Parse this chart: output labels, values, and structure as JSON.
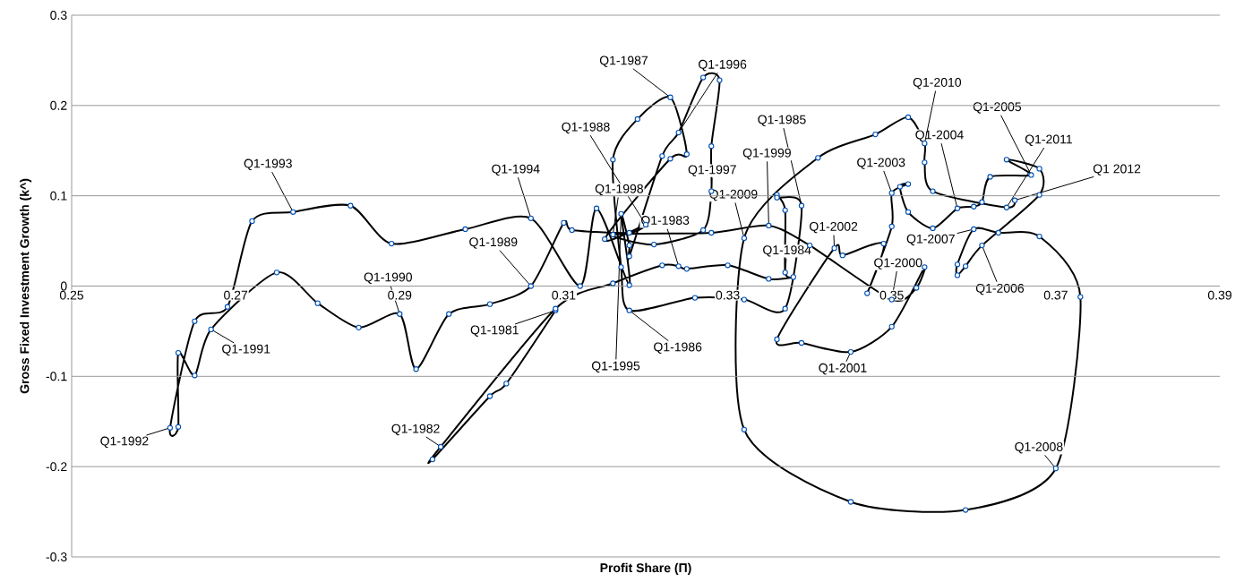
{
  "chart_data": {
    "type": "line",
    "xlabel": "Profit Share (Π)",
    "ylabel": "Gross Fixed Investment Growth (k^)",
    "x": [
      0.309,
      0.303,
      0.301,
      0.294,
      0.295,
      0.309,
      0.316,
      0.322,
      0.324,
      0.325,
      0.33,
      0.335,
      0.338,
      0.337,
      0.337,
      0.336,
      0.336,
      0.339,
      0.337,
      0.332,
      0.326,
      0.318,
      0.317,
      0.316,
      0.319,
      0.323,
      0.325,
      0.323,
      0.315,
      0.32,
      0.318,
      0.311,
      0.31,
      0.306,
      0.301,
      0.296,
      0.292,
      0.29,
      0.285,
      0.28,
      0.275,
      0.267,
      0.265,
      0.263,
      0.263,
      0.262,
      0.265,
      0.269,
      0.272,
      0.277,
      0.284,
      0.289,
      0.298,
      0.306,
      0.312,
      0.314,
      0.318,
      0.317,
      0.318,
      0.318,
      0.322,
      0.324,
      0.327,
      0.329,
      0.328,
      0.328,
      0.327,
      0.321,
      0.316,
      0.328,
      0.335,
      0.34,
      0.35,
      0.353,
      0.354,
      0.35,
      0.345,
      0.339,
      0.336,
      0.343,
      0.344,
      0.349,
      0.347,
      0.35,
      0.35,
      0.352,
      0.351,
      0.352,
      0.355,
      0.358,
      0.36,
      0.361,
      0.362,
      0.367,
      0.364,
      0.368,
      0.368,
      0.361,
      0.359,
      0.358,
      0.358,
      0.36,
      0.363,
      0.368,
      0.373,
      0.37,
      0.359,
      0.345,
      0.332,
      0.332,
      0.341,
      0.348,
      0.352,
      0.354,
      0.354,
      0.355,
      0.364,
      0.365
    ],
    "values": [
      -0.027,
      -0.108,
      -0.122,
      -0.192,
      -0.178,
      -0.025,
      0.003,
      0.023,
      0.022,
      0.019,
      0.023,
      0.008,
      0.01,
      0.015,
      0.084,
      0.101,
      0.098,
      0.089,
      -0.025,
      -0.015,
      -0.013,
      -0.027,
      0.021,
      0.14,
      0.185,
      0.209,
      0.146,
      0.141,
      0.052,
      0.068,
      0.059,
      0.062,
      0.07,
      0.0,
      -0.02,
      -0.031,
      -0.092,
      -0.031,
      -0.046,
      -0.019,
      0.015,
      -0.048,
      -0.099,
      -0.074,
      -0.156,
      -0.157,
      -0.039,
      -0.023,
      0.072,
      0.082,
      0.089,
      0.047,
      0.063,
      0.075,
      0.0,
      0.086,
      0.001,
      0.08,
      0.045,
      0.033,
      0.144,
      0.17,
      0.231,
      0.228,
      0.155,
      0.105,
      0.062,
      0.046,
      0.057,
      0.059,
      0.067,
      0.045,
      -0.015,
      -0.002,
      0.021,
      -0.045,
      -0.073,
      -0.063,
      -0.059,
      0.042,
      0.034,
      0.047,
      -0.008,
      0.066,
      0.103,
      0.113,
      0.11,
      0.082,
      0.064,
      0.086,
      0.088,
      0.093,
      0.121,
      0.123,
      0.14,
      0.13,
      0.101,
      0.045,
      0.022,
      0.012,
      0.024,
      0.063,
      0.059,
      0.055,
      -0.012,
      -0.202,
      -0.248,
      -0.239,
      -0.159,
      0.053,
      0.142,
      0.168,
      0.187,
      0.158,
      0.137,
      0.105,
      0.087,
      0.095
    ],
    "color": "#000000",
    "marker": "circle",
    "line_style": "solid",
    "grid": "y",
    "xlim": [
      0.25,
      0.39
    ],
    "xticks": [
      0.25,
      0.27,
      0.29,
      0.31,
      0.33,
      0.35,
      0.37,
      0.39
    ],
    "ylim": [
      -0.3,
      0.3
    ],
    "yticks": [
      -0.3,
      -0.2,
      -0.1,
      0,
      0.1,
      0.2,
      0.3
    ],
    "annotations": [
      {
        "text": "Q1-1981",
        "x": 0.309,
        "y": -0.027
      },
      {
        "text": "Q1-1982",
        "x": 0.295,
        "y": -0.178
      },
      {
        "text": "Q1-1983",
        "x": 0.324,
        "y": 0.022
      },
      {
        "text": "Q1-1984",
        "x": 0.337,
        "y": 0.015
      },
      {
        "text": "Q1-1985",
        "x": 0.339,
        "y": 0.089
      },
      {
        "text": "Q1-1986",
        "x": 0.318,
        "y": -0.027
      },
      {
        "text": "Q1-1987",
        "x": 0.323,
        "y": 0.209
      },
      {
        "text": "Q1-1988",
        "x": 0.32,
        "y": 0.068
      },
      {
        "text": "Q1-1989",
        "x": 0.306,
        "y": 0.0
      },
      {
        "text": "Q1-1990",
        "x": 0.29,
        "y": -0.031
      },
      {
        "text": "Q1-1991",
        "x": 0.267,
        "y": -0.048
      },
      {
        "text": "Q1-1992",
        "x": 0.262,
        "y": -0.157
      },
      {
        "text": "Q1-1993",
        "x": 0.277,
        "y": 0.082
      },
      {
        "text": "Q1-1994",
        "x": 0.306,
        "y": 0.075
      },
      {
        "text": "Q1-1995",
        "x": 0.317,
        "y": 0.08
      },
      {
        "text": "Q1-1996",
        "x": 0.324,
        "y": 0.17
      },
      {
        "text": "Q1-1997",
        "x": 0.328,
        "y": 0.105
      },
      {
        "text": "Q1-1998",
        "x": 0.316,
        "y": 0.057
      },
      {
        "text": "Q1-1999",
        "x": 0.335,
        "y": 0.067
      },
      {
        "text": "Q1-2000",
        "x": 0.35,
        "y": -0.015
      },
      {
        "text": "Q1-2001",
        "x": 0.345,
        "y": -0.073
      },
      {
        "text": "Q1-2002",
        "x": 0.343,
        "y": 0.042
      },
      {
        "text": "Q1-2003",
        "x": 0.35,
        "y": 0.103
      },
      {
        "text": "Q1-2004",
        "x": 0.358,
        "y": 0.086
      },
      {
        "text": "Q1-2005",
        "x": 0.367,
        "y": 0.123
      },
      {
        "text": "Q1-2006",
        "x": 0.361,
        "y": 0.045
      },
      {
        "text": "Q1-2007",
        "x": 0.36,
        "y": 0.063
      },
      {
        "text": "Q1-2008",
        "x": 0.37,
        "y": -0.202
      },
      {
        "text": "Q1-2009",
        "x": 0.332,
        "y": 0.053
      },
      {
        "text": "Q1-2010",
        "x": 0.354,
        "y": 0.158
      },
      {
        "text": "Q1-2011",
        "x": 0.364,
        "y": 0.087
      },
      {
        "text": "Q1 2012",
        "x": 0.365,
        "y": 0.095
      }
    ]
  }
}
